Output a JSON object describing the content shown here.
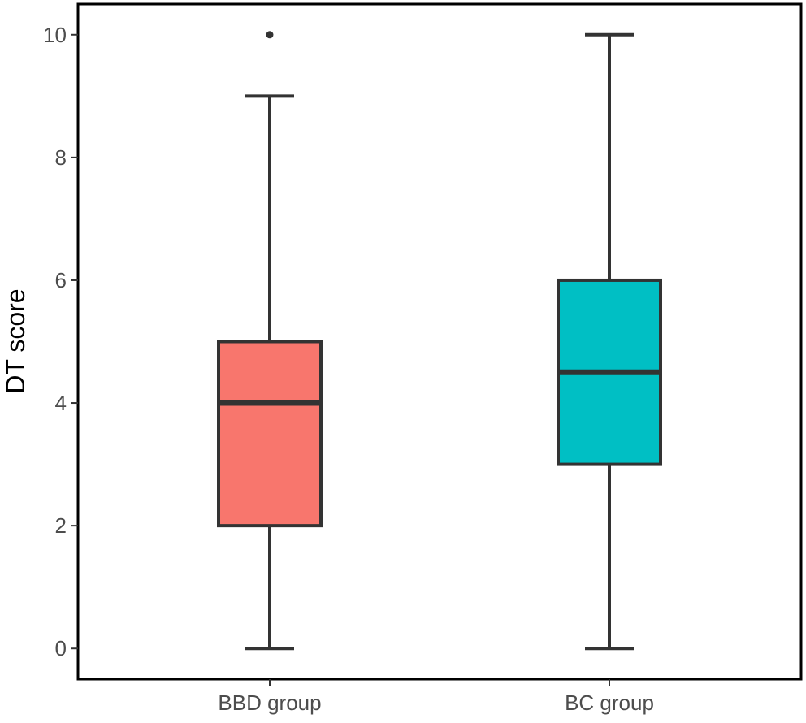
{
  "chart_data": {
    "type": "boxplot",
    "title": "",
    "xlabel": "",
    "ylabel": "DT score",
    "ylim": [
      -0.5,
      10.5
    ],
    "yticks": [
      0,
      2,
      4,
      6,
      8,
      10
    ],
    "grid": false,
    "legend": "none",
    "categories": [
      "BBD group",
      "BC group"
    ],
    "series": [
      {
        "name": "BBD group",
        "color": "#F8766D",
        "whisker_low": 0,
        "q1": 2,
        "median": 4,
        "q3": 5,
        "whisker_high": 9,
        "outliers": [
          10
        ]
      },
      {
        "name": "BC group",
        "color": "#00BFC4",
        "whisker_low": 0,
        "q1": 3,
        "median": 4.5,
        "q3": 6,
        "whisker_high": 10,
        "outliers": []
      }
    ]
  }
}
